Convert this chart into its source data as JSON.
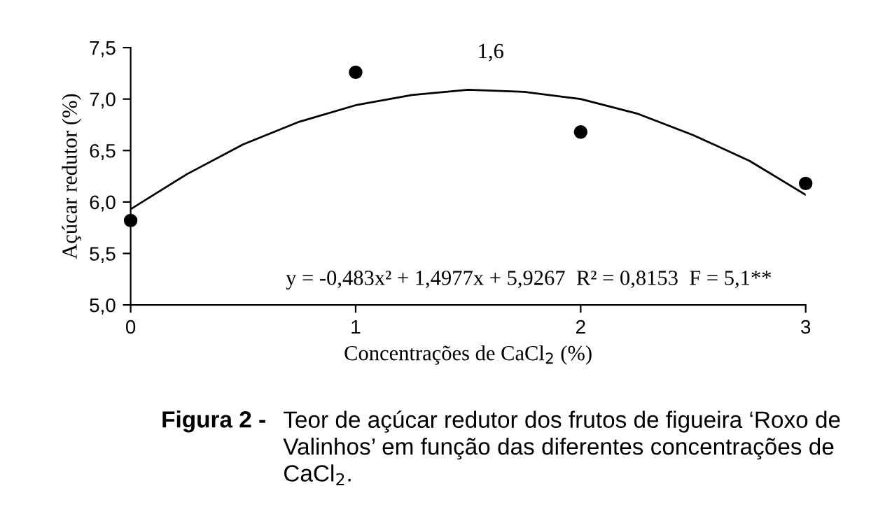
{
  "chart_data": {
    "type": "scatter",
    "xlabel": "Concentrações de CaCl$_{2}$ (%)",
    "ylabel": "Açúcar redutor (%)",
    "x": [
      0,
      1,
      2,
      3
    ],
    "xlim": [
      0,
      3
    ],
    "xticks": [
      0,
      1,
      2,
      3
    ],
    "ylim": [
      5.0,
      7.5
    ],
    "yticks": [
      {
        "value": 5.0,
        "label": "5,0"
      },
      {
        "value": 5.5,
        "label": "5,5"
      },
      {
        "value": 6.0,
        "label": "6,0"
      },
      {
        "value": 6.5,
        "label": "6,5"
      },
      {
        "value": 7.0,
        "label": "7,0"
      },
      {
        "value": 7.5,
        "label": "7,5"
      }
    ],
    "grid": false,
    "marker": "circle",
    "series": [
      {
        "color": "#000000",
        "values": [
          5.82,
          7.26,
          6.68,
          6.18
        ]
      },
      {
        "type": "line",
        "color": "#000000",
        "line_style": "solid",
        "marker": "none",
        "x": [
          0,
          0.25,
          0.5,
          0.75,
          1,
          1.25,
          1.5,
          1.75,
          2,
          2.25,
          2.5,
          2.75,
          3
        ],
        "values": [
          5.93,
          6.27,
          6.56,
          6.78,
          6.94,
          7.04,
          7.09,
          7.07,
          7.0,
          6.86,
          6.65,
          6.4,
          6.07
        ]
      }
    ],
    "annotations": [
      {
        "text": "1,6",
        "x": 1.6,
        "y": 7.09
      },
      "y = -0,483x² + 1,4977x + 5,9267  R² = 0,8153  F = 5,1**",
      "Figura 2 -",
      "Teor de açúcar redutor dos frutos de figueira ‘Roxo de Valinhos’ em função das diferentes concentrações de CaCl$_{2}$."
    ]
  }
}
